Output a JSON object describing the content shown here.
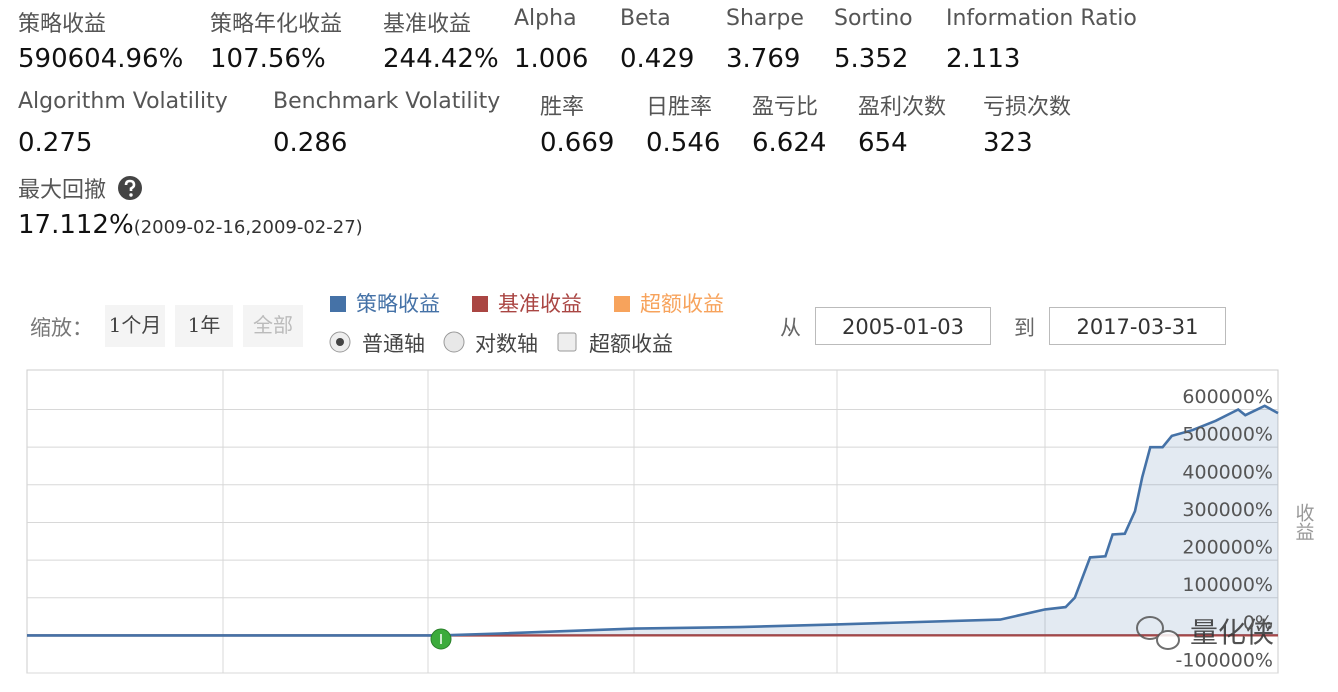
{
  "metrics": [
    [
      {
        "label": "策略收益",
        "value": "590604.96%"
      },
      {
        "label": "策略年化收益",
        "value": "107.56%"
      },
      {
        "label": "基准收益",
        "value": "244.42%"
      },
      {
        "label": "Alpha",
        "value": "1.006"
      },
      {
        "label": "Beta",
        "value": "0.429"
      },
      {
        "label": "Sharpe",
        "value": "3.769"
      },
      {
        "label": "Sortino",
        "value": "5.352"
      },
      {
        "label": "Information Ratio",
        "value": "2.113"
      }
    ],
    [
      {
        "label": "Algorithm Volatility",
        "value": "0.275"
      },
      {
        "label": "Benchmark Volatility",
        "value": "0.286"
      },
      {
        "label": "胜率",
        "value": "0.669"
      },
      {
        "label": "日胜率",
        "value": "0.546"
      },
      {
        "label": "盈亏比",
        "value": "6.624"
      },
      {
        "label": "盈利次数",
        "value": "654"
      },
      {
        "label": "亏损次数",
        "value": "323"
      }
    ]
  ],
  "max_drawdown": {
    "label": "最大回撤",
    "value": "17.112%",
    "range": "(2009-02-16,2009-02-27)"
  },
  "controls": {
    "zoom_label": "缩放：",
    "zoom_options": [
      "1个月",
      "1年",
      "全部"
    ],
    "axis_options": [
      "普通轴",
      "对数轴",
      "超额收益"
    ],
    "from_label": "从",
    "from_date": "2005-01-03",
    "to_label": "到",
    "to_date": "2017-03-31"
  },
  "watermark": "量化侠",
  "chart_data": {
    "type": "line",
    "y_axis_label": "收益",
    "x": [
      2005.0,
      2009.04,
      2009.63,
      2010.95,
      2011.98,
      2012.93,
      2014.53,
      2014.97,
      2015.17,
      2015.26,
      2015.41,
      2015.56,
      2015.63,
      2015.75,
      2015.85,
      2015.92,
      2016.0,
      2016.12,
      2016.21,
      2016.41,
      2016.64,
      2016.86,
      2016.93,
      2017.12,
      2017.25
    ],
    "xlim": [
      2005.0,
      2017.25
    ],
    "series": [
      {
        "name": "策略收益",
        "color": "#4572a7",
        "values": [
          0,
          0,
          5000,
          18000,
          22000,
          29000,
          42000,
          69000,
          75000,
          100000,
          207000,
          210000,
          268000,
          270000,
          330000,
          420000,
          500000,
          500000,
          530000,
          545000,
          570000,
          600000,
          585000,
          610000,
          590604.96
        ]
      },
      {
        "name": "基准收益",
        "color": "#aa4643",
        "values": [
          0,
          0,
          20,
          40,
          40,
          60,
          80,
          120,
          200,
          220,
          180,
          170,
          160,
          150,
          150,
          160,
          170,
          170,
          180,
          190,
          200,
          210,
          220,
          235,
          244.42
        ]
      },
      {
        "name": "超额收益",
        "color": "#f7a35c",
        "visible": false
      }
    ],
    "ylim": [
      -100000,
      705000
    ],
    "yticks": [
      {
        "value": -100000,
        "label": "-100000%"
      },
      {
        "value": 0,
        "label": "0%"
      },
      {
        "value": 100000,
        "label": "100000%"
      },
      {
        "value": 200000,
        "label": "200000%"
      },
      {
        "value": 300000,
        "label": "300000%"
      },
      {
        "value": 400000,
        "label": "400000%"
      },
      {
        "value": 500000,
        "label": "500000%"
      },
      {
        "value": 600000,
        "label": "600000%"
      }
    ],
    "grid": true
  }
}
